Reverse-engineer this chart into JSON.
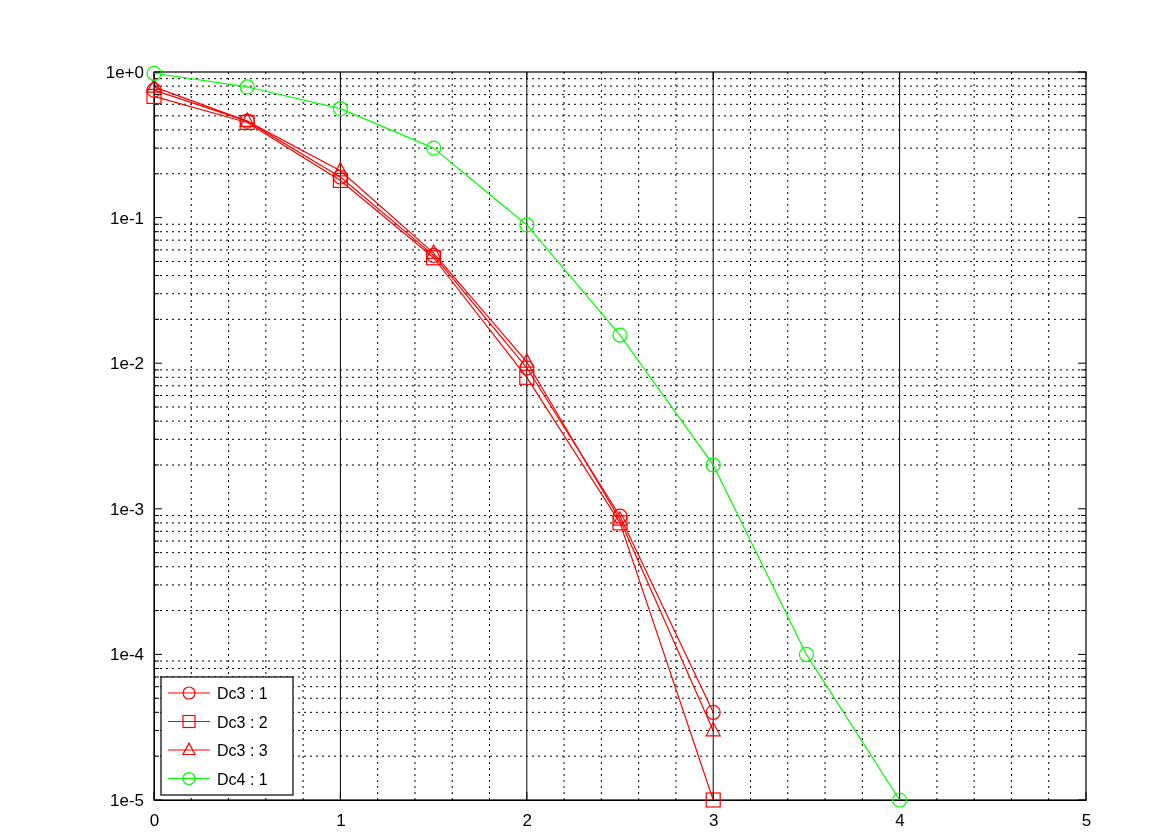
{
  "chart_data": {
    "type": "line",
    "log": "y",
    "grid": true,
    "legend": "bottom left",
    "x": [
      0,
      0.5,
      1,
      1.5,
      2,
      2.5,
      3
    ],
    "xlim": [
      0,
      5
    ],
    "xticks": [
      0,
      1,
      2,
      3,
      4,
      5
    ],
    "ylim": [
      1e-05,
      1
    ],
    "yticks": [
      {
        "value": 1e-05,
        "label": "1e-5"
      },
      {
        "value": 0.0001,
        "label": "1e-4"
      },
      {
        "value": 0.001,
        "label": "1e-3"
      },
      {
        "value": 0.01,
        "label": "1e-2"
      },
      {
        "value": 0.1,
        "label": "1e-1"
      },
      {
        "value": 1,
        "label": "1e+0"
      }
    ],
    "series": [
      {
        "name": "Dc3 : 1",
        "color": "#ff0000",
        "marker": "circle",
        "values": [
          0.75,
          0.46,
          0.19,
          0.055,
          0.0093,
          0.00089,
          4e-05
        ]
      },
      {
        "name": "Dc3 : 2",
        "color": "#ff0000",
        "marker": "square",
        "values": [
          0.68,
          0.45,
          0.18,
          0.053,
          0.008,
          0.0008,
          1e-05
        ]
      },
      {
        "name": "Dc3 : 3",
        "color": "#ff0000",
        "marker": "triangle",
        "values": [
          0.79,
          0.46,
          0.21,
          0.057,
          0.0102,
          0.00084,
          3e-05
        ]
      },
      {
        "name": "Dc4 : 1",
        "color": "#00ff00",
        "marker": "circle",
        "x": [
          0,
          0.5,
          1,
          1.5,
          2,
          2.5,
          3,
          3.5,
          4
        ],
        "values": [
          0.98,
          0.79,
          0.56,
          0.3,
          0.089,
          0.0156,
          0.002,
          0.0001,
          1e-05
        ]
      }
    ]
  }
}
